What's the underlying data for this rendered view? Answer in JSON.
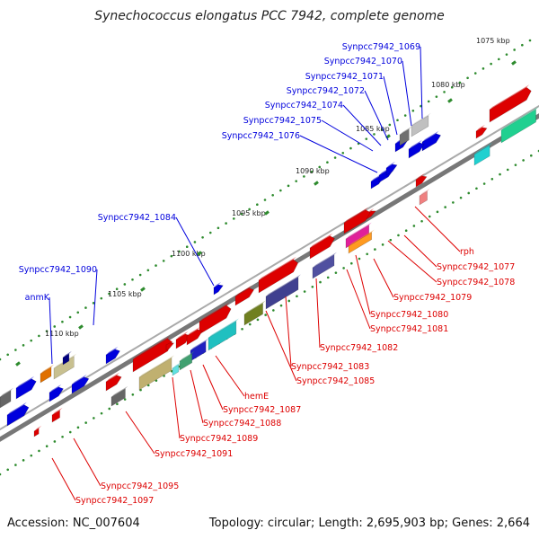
{
  "title": "Synechococcus elongatus PCC 7942, complete genome",
  "accession": "Accession: NC_007604",
  "topology": "Topology: circular; Length: 2,695,903 bp; Genes: 2,664",
  "colors": {
    "top_strand": "#0000dd",
    "bottom_strand": "#dd0000",
    "backbone": "#777777",
    "tick": "#2e8b2e"
  },
  "kbp_labels": [
    "1075 kbp",
    "1080 kbp",
    "1085 kbp",
    "1090 kbp",
    "1095 kbp",
    "1100 kbp",
    "1105 kbp",
    "1110 kbp"
  ],
  "genes_top": [
    "Synpcc7942_1069",
    "Synpcc7942_1070",
    "Synpcc7942_1071",
    "Synpcc7942_1072",
    "Synpcc7942_1074",
    "Synpcc7942_1075",
    "Synpcc7942_1076",
    "Synpcc7942_1084",
    "Synpcc7942_1090",
    "anmK"
  ],
  "genes_bottom": [
    "rph",
    "Synpcc7942_1077",
    "Synpcc7942_1078",
    "Synpcc7942_1079",
    "Synpcc7942_1080",
    "Synpcc7942_1081",
    "Synpcc7942_1082",
    "Synpcc7942_1083",
    "Synpcc7942_1085",
    "hemE",
    "Synpcc7942_1087",
    "Synpcc7942_1088",
    "Synpcc7942_1089",
    "Synpcc7942_1091",
    "Synpcc7942_1095",
    "Synpcc7942_1097"
  ]
}
